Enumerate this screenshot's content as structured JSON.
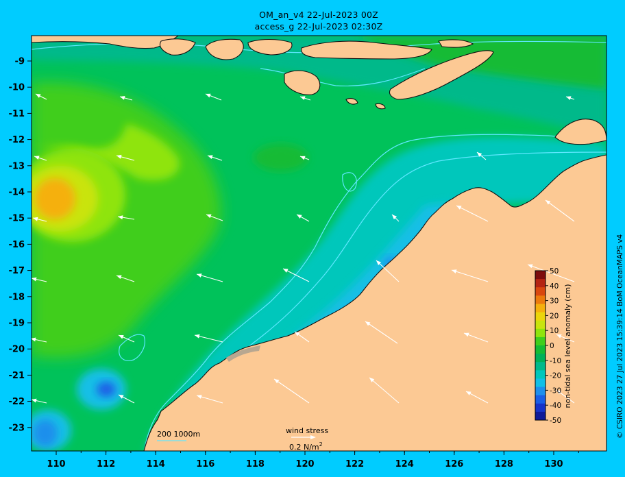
{
  "title_line1": "OM_an_v4  22-Jul-2023 00Z",
  "title_line2": "access_g 22-Jul-2023 02:30Z",
  "x_ticks": [
    "110",
    "112",
    "114",
    "116",
    "118",
    "120",
    "122",
    "124",
    "126",
    "128",
    "130"
  ],
  "y_ticks": [
    "-9",
    "-10",
    "-11",
    "-12",
    "-13",
    "-14",
    "-15",
    "-16",
    "-17",
    "-18",
    "-19",
    "-20",
    "-21",
    "-22",
    "-23"
  ],
  "colorbar": {
    "label": "non-tidal sea level anomaly (cm)",
    "ticks": [
      "50",
      "40",
      "30",
      "20",
      "10",
      "0",
      "-10",
      "-20",
      "-30",
      "-40",
      "-50"
    ],
    "colors": [
      "#7d0d0d",
      "#b42412",
      "#d9470e",
      "#ec7a0c",
      "#f5b00c",
      "#ecd50b",
      "#c9e40e",
      "#8fe40c",
      "#3fce1c",
      "#14bb34",
      "#00b158",
      "#00b98a",
      "#00c7bb",
      "#12bfe6",
      "#1e8fec",
      "#1a5ee6",
      "#1733c9",
      "#101a98"
    ]
  },
  "isobath_legend": "200  1000m",
  "wind_stress": {
    "label": "wind stress",
    "scale": "0.2 N/m",
    "scale_sup": "2"
  },
  "copyright": "© CSIRO 2023   27 Jul 2023 15:39:14 BoM OceanMAPS v4",
  "colors": {
    "background": "#00ccff",
    "land": "#fcc994",
    "ocean_base": "#00c25a",
    "isobath": "#5fe8ff",
    "arrow": "#ffffff"
  }
}
